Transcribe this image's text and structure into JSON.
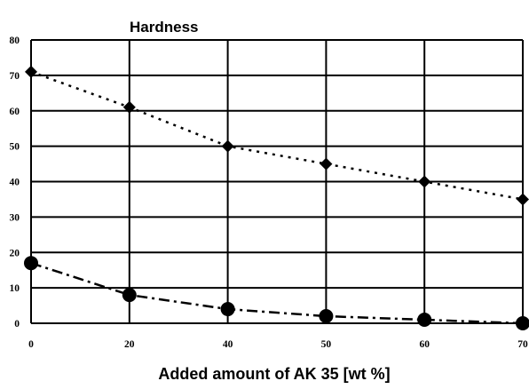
{
  "chart_data": {
    "type": "line",
    "title": "Hardness",
    "xlabel": "Added amount of AK 35 [wt %]",
    "ylabel": "",
    "categories": [
      "0",
      "20",
      "40",
      "50",
      "60",
      "70"
    ],
    "ylim": [
      0,
      80
    ],
    "yticks": [
      0,
      10,
      20,
      30,
      40,
      50,
      60,
      70,
      80
    ],
    "grid": true,
    "legend": "none",
    "series": [
      {
        "values": [
          71,
          61,
          50,
          45,
          40,
          35
        ],
        "marker": "diamond",
        "line_style": "dotted",
        "color": "#000000"
      },
      {
        "values": [
          17,
          8,
          4,
          2,
          1,
          0
        ],
        "marker": "circle",
        "line_style": "dash-dot",
        "color": "#000000"
      }
    ]
  }
}
